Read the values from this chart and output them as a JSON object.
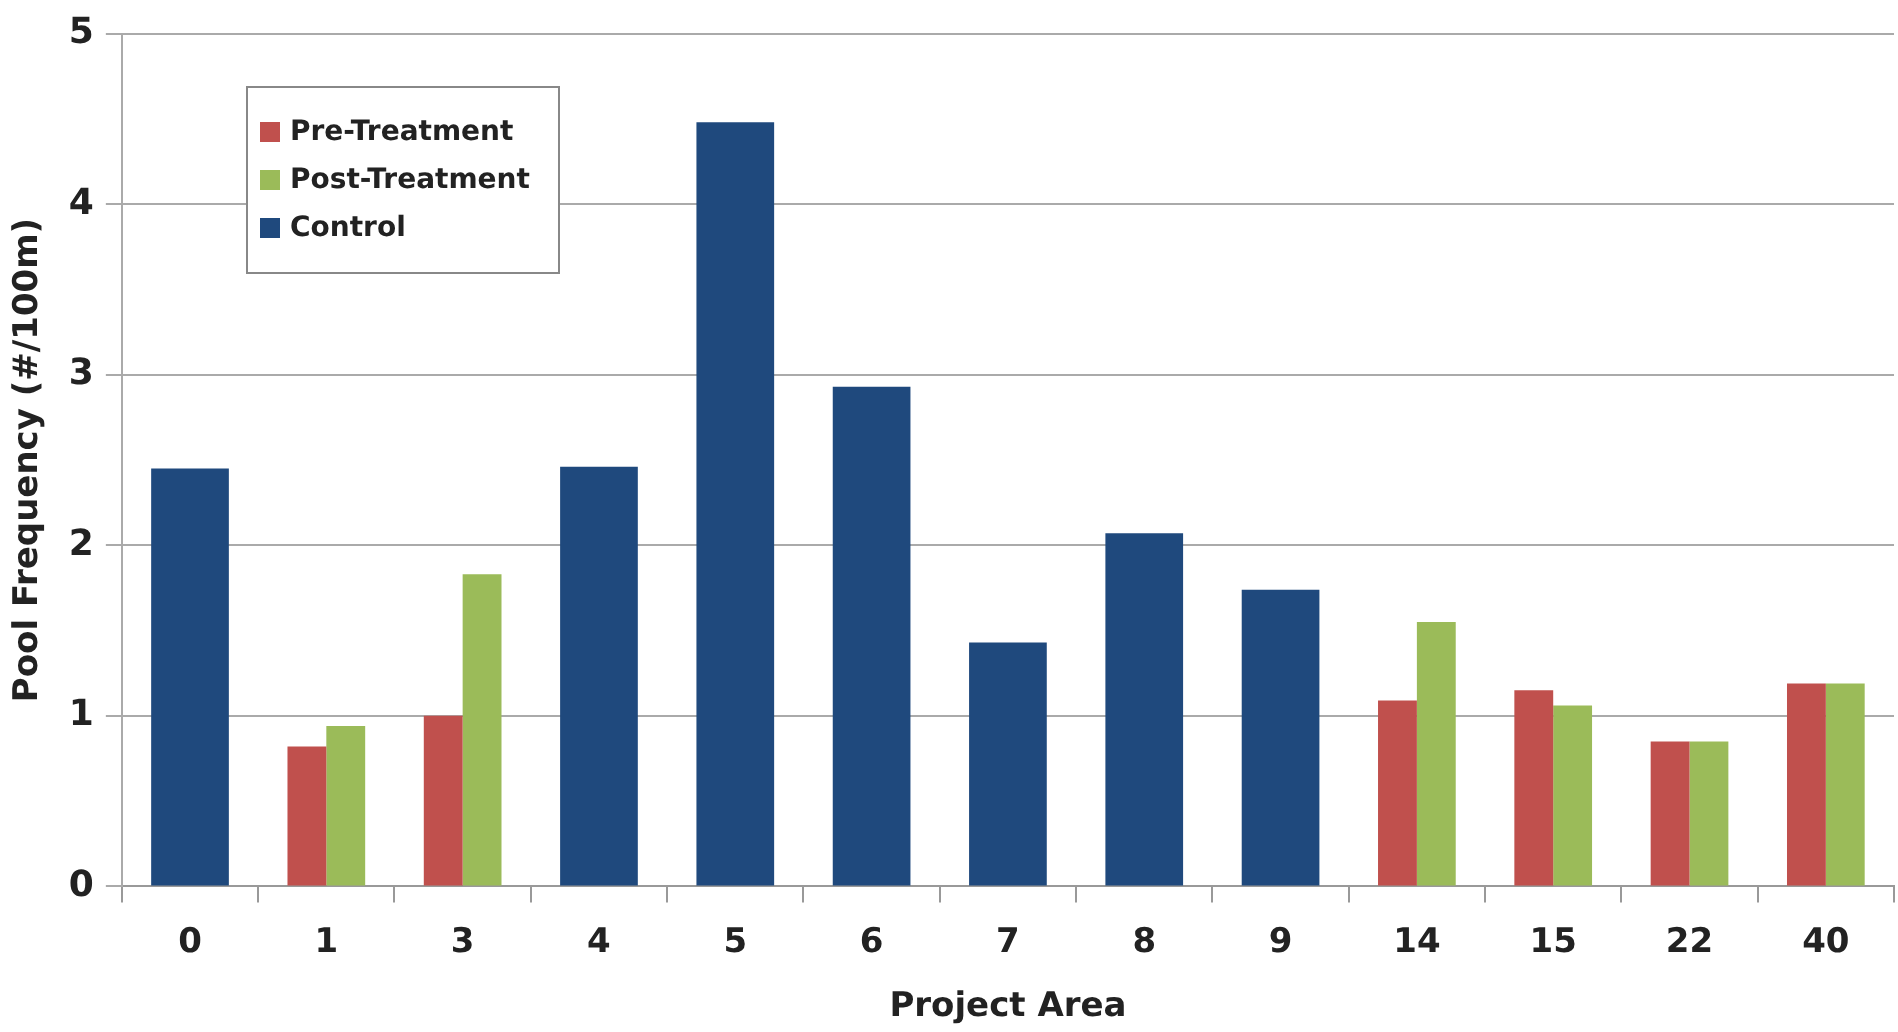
{
  "chart_data": {
    "type": "bar",
    "xlabel": "Project Area",
    "ylabel": "Pool Frequency (#/100m)",
    "categories": [
      "0",
      "1",
      "3",
      "4",
      "5",
      "6",
      "7",
      "8",
      "9",
      "14",
      "15",
      "22",
      "40"
    ],
    "series": [
      {
        "name": "Pre-Treatment",
        "color": "#c0504d",
        "values": [
          null,
          0.82,
          1.0,
          null,
          null,
          null,
          null,
          null,
          null,
          1.09,
          1.15,
          0.85,
          1.19
        ]
      },
      {
        "name": "Post-Treatment",
        "color": "#9bbb59",
        "values": [
          null,
          0.94,
          1.83,
          null,
          null,
          null,
          null,
          null,
          null,
          1.55,
          1.06,
          0.85,
          1.19
        ]
      },
      {
        "name": "Control",
        "color": "#1f497d",
        "values": [
          2.45,
          null,
          null,
          2.46,
          4.48,
          2.93,
          1.43,
          2.07,
          1.74,
          null,
          null,
          null,
          null
        ]
      }
    ],
    "ylim": [
      0,
      5
    ],
    "yticks": [
      0,
      1,
      2,
      3,
      4,
      5
    ],
    "grid": "y",
    "legend": "top left"
  }
}
